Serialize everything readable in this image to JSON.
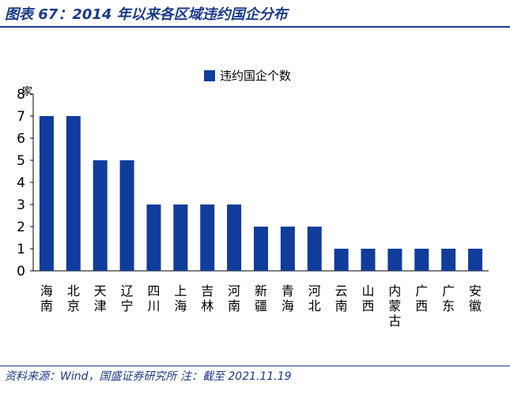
{
  "figure_title": "图表 67：2014 年以来各区域违约国企分布",
  "source_note": "资料来源：Wind，国盛证券研究所 注：截至 2021.11.19",
  "colors": {
    "bar": "#103c9c",
    "title": "#1a3a8a"
  },
  "chart_data": {
    "type": "bar",
    "title": "",
    "ylabel": "家",
    "xlabel": "",
    "ylim": [
      0,
      8
    ],
    "yticks": [
      0,
      1,
      2,
      3,
      4,
      5,
      6,
      7,
      8
    ],
    "legend": {
      "position": "top-center"
    },
    "grid": false,
    "categories": [
      "海南",
      "北京",
      "天津",
      "辽宁",
      "四川",
      "上海",
      "吉林",
      "河南",
      "新疆",
      "青海",
      "河北",
      "云南",
      "山西",
      "内蒙古",
      "广西",
      "广东",
      "安徽"
    ],
    "series": [
      {
        "name": "违约国企个数",
        "values": [
          7,
          7,
          5,
          5,
          3,
          3,
          3,
          3,
          2,
          2,
          2,
          1,
          1,
          1,
          1,
          1,
          1
        ]
      }
    ]
  }
}
